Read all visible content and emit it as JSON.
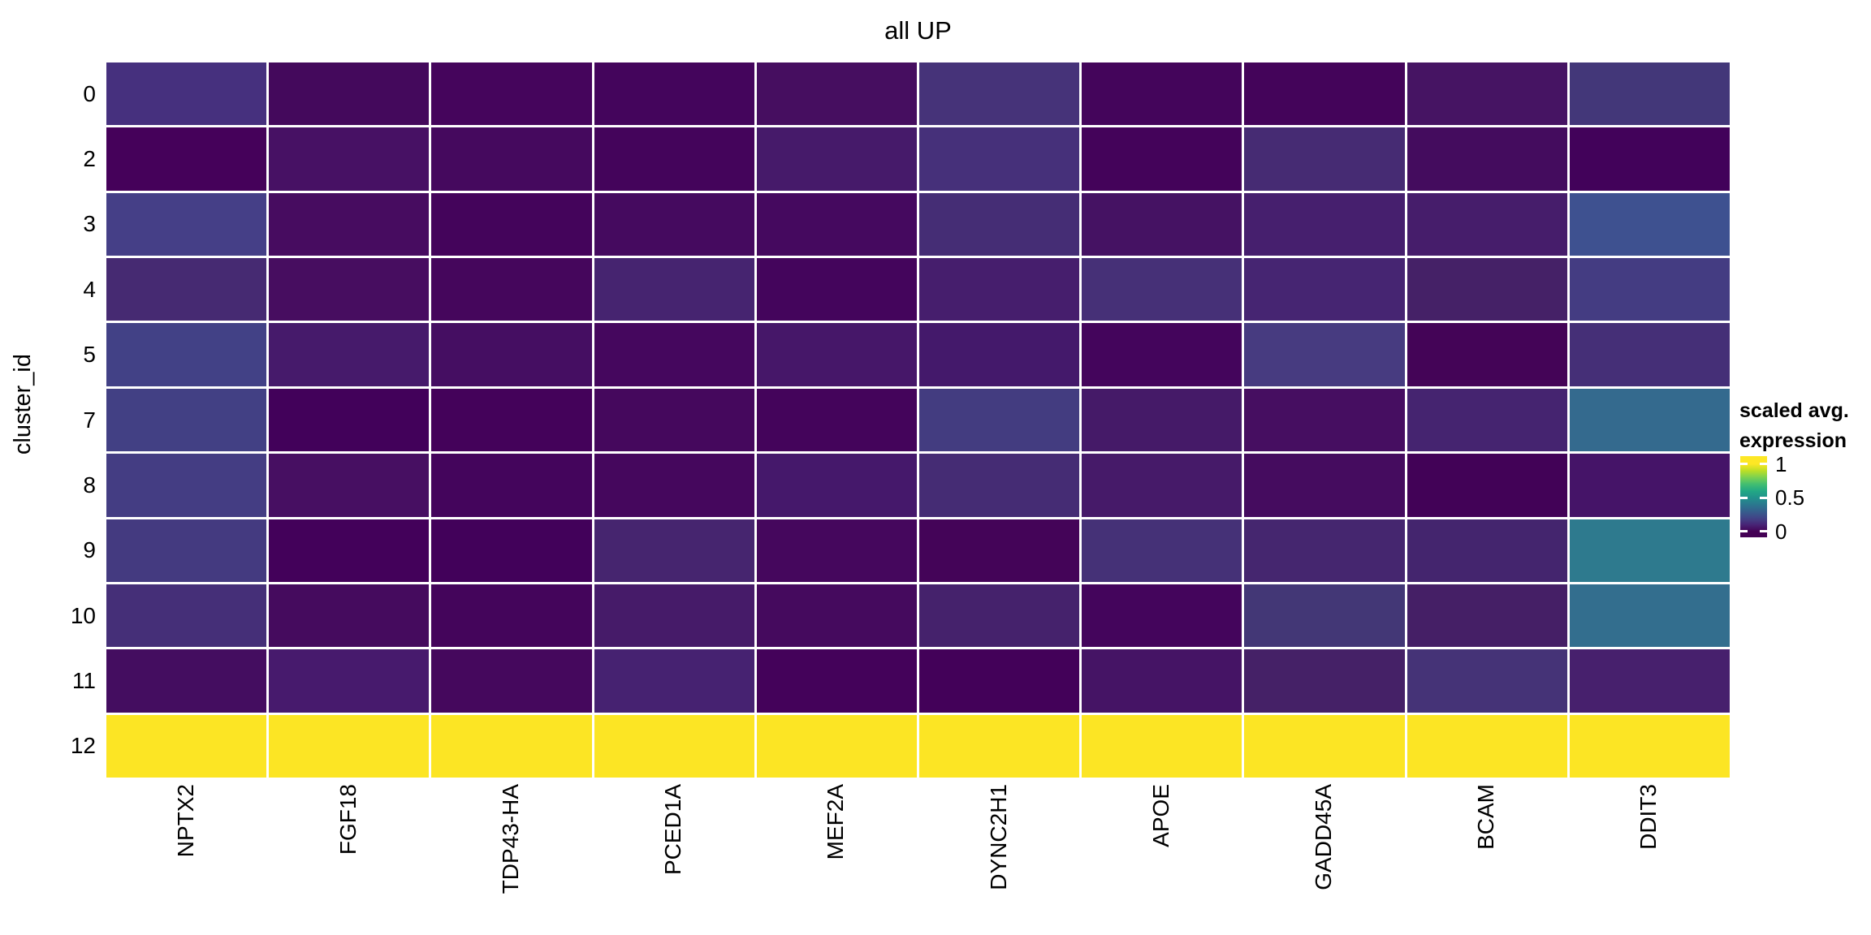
{
  "figure": {
    "title": "all UP",
    "background": "#FFFFFF"
  },
  "chart_data": {
    "type": "heatmap",
    "title": "all UP",
    "xlabel": "",
    "ylabel": "cluster_id",
    "legend_title": "scaled avg. expression",
    "columns": [
      "NPTX2",
      "FGF18",
      "TDP43-HA",
      "PCED1A",
      "MEF2A",
      "DYNC2H1",
      "APOE",
      "GADD45A",
      "BCAM",
      "DDIT3"
    ],
    "rows": [
      "0",
      "2",
      "3",
      "4",
      "5",
      "7",
      "8",
      "9",
      "10",
      "11",
      "12"
    ],
    "value_range": [
      0,
      1
    ],
    "values": [
      [
        0.13,
        0.03,
        0.02,
        0.02,
        0.04,
        0.14,
        0.02,
        0.01,
        0.05,
        0.16
      ],
      [
        0.0,
        0.05,
        0.03,
        0.01,
        0.07,
        0.13,
        0.01,
        0.12,
        0.03,
        0.0
      ],
      [
        0.19,
        0.04,
        0.01,
        0.03,
        0.03,
        0.12,
        0.05,
        0.08,
        0.08,
        0.27
      ],
      [
        0.11,
        0.04,
        0.02,
        0.1,
        0.02,
        0.08,
        0.13,
        0.1,
        0.09,
        0.18
      ],
      [
        0.2,
        0.07,
        0.04,
        0.03,
        0.06,
        0.06,
        0.02,
        0.17,
        0.01,
        0.13
      ],
      [
        0.19,
        0.0,
        0.01,
        0.03,
        0.01,
        0.18,
        0.07,
        0.04,
        0.1,
        0.37
      ],
      [
        0.18,
        0.05,
        0.02,
        0.03,
        0.06,
        0.12,
        0.07,
        0.03,
        0.0,
        0.06
      ],
      [
        0.17,
        0.0,
        0.0,
        0.1,
        0.03,
        0.01,
        0.13,
        0.1,
        0.1,
        0.44
      ],
      [
        0.13,
        0.03,
        0.02,
        0.07,
        0.03,
        0.09,
        0.01,
        0.15,
        0.08,
        0.39
      ],
      [
        0.04,
        0.07,
        0.03,
        0.09,
        0.01,
        0.0,
        0.05,
        0.08,
        0.14,
        0.09
      ],
      [
        1.0,
        1.0,
        1.0,
        1.0,
        1.0,
        1.0,
        1.0,
        1.0,
        1.0,
        1.0
      ]
    ],
    "cell_colors": [
      [
        "#46307E",
        "#44095C",
        "#45055C",
        "#44055C",
        "#460E60",
        "#463379",
        "#44055B",
        "#44045A",
        "#461463",
        "#433779"
      ],
      [
        "#45015A",
        "#471164",
        "#45095E",
        "#44045B",
        "#461A6A",
        "#46307A",
        "#44035A",
        "#462B73",
        "#440C5E",
        "#42025A"
      ],
      [
        "#453F87",
        "#470C60",
        "#44045B",
        "#450A5F",
        "#45095F",
        "#452D75",
        "#451263",
        "#461F6E",
        "#461D6B",
        "#3E5190"
      ],
      [
        "#462A72",
        "#470D60",
        "#45065C",
        "#462470",
        "#44055C",
        "#461E6D",
        "#463077",
        "#462572",
        "#452167",
        "#443C82"
      ],
      [
        "#424186",
        "#461A6B",
        "#450E62",
        "#45075E",
        "#461769",
        "#44196B",
        "#44055C",
        "#473B80",
        "#440457",
        "#452F77"
      ],
      [
        "#424084",
        "#42015A",
        "#44025A",
        "#45085D",
        "#44045B",
        "#433C80",
        "#451A68",
        "#460E61",
        "#452470",
        "#346A8E"
      ],
      [
        "#443D83",
        "#470F62",
        "#44055C",
        "#45075D",
        "#45186B",
        "#452C74",
        "#461A69",
        "#450C5F",
        "#420257",
        "#451468"
      ],
      [
        "#443A80",
        "#43015A",
        "#42015A",
        "#46256F",
        "#45075D",
        "#440458",
        "#453177",
        "#45266F",
        "#44256E",
        "#2E7A8E"
      ],
      [
        "#452F78",
        "#450B5E",
        "#44055B",
        "#461B69",
        "#450A5E",
        "#45226C",
        "#44055C",
        "#433776",
        "#451F66",
        "#336E8E"
      ],
      [
        "#440D60",
        "#471A6D",
        "#45085D",
        "#462271",
        "#44025A",
        "#430159",
        "#451465",
        "#452167",
        "#453377",
        "#47206D"
      ],
      [
        "#FCE524",
        "#FCE524",
        "#FCE524",
        "#FCE524",
        "#FCE524",
        "#FCE524",
        "#FCE524",
        "#FCE524",
        "#FCE524",
        "#FCE524"
      ]
    ]
  },
  "legend": {
    "title_line1": "scaled avg.",
    "title_line2": "expression",
    "ticks": [
      {
        "label": "1",
        "value": 1
      },
      {
        "label": "0.5",
        "value": 0.5
      },
      {
        "label": "0",
        "value": 0
      }
    ],
    "gradient_stops": [
      {
        "v": 1.0,
        "color": "#FDE725"
      },
      {
        "v": 0.9,
        "color": "#BDDF26"
      },
      {
        "v": 0.8,
        "color": "#7AD151"
      },
      {
        "v": 0.7,
        "color": "#42BE71"
      },
      {
        "v": 0.6,
        "color": "#22A884"
      },
      {
        "v": 0.5,
        "color": "#21918C"
      },
      {
        "v": 0.4,
        "color": "#2A788E"
      },
      {
        "v": 0.3,
        "color": "#355F8D"
      },
      {
        "v": 0.2,
        "color": "#414487"
      },
      {
        "v": 0.1,
        "color": "#482475"
      },
      {
        "v": 0.0,
        "color": "#440154"
      }
    ],
    "bar_map": {
      "top_value": 1.115,
      "value_span": 1.2
    },
    "tick_mark_color": "#FFFFFF"
  }
}
